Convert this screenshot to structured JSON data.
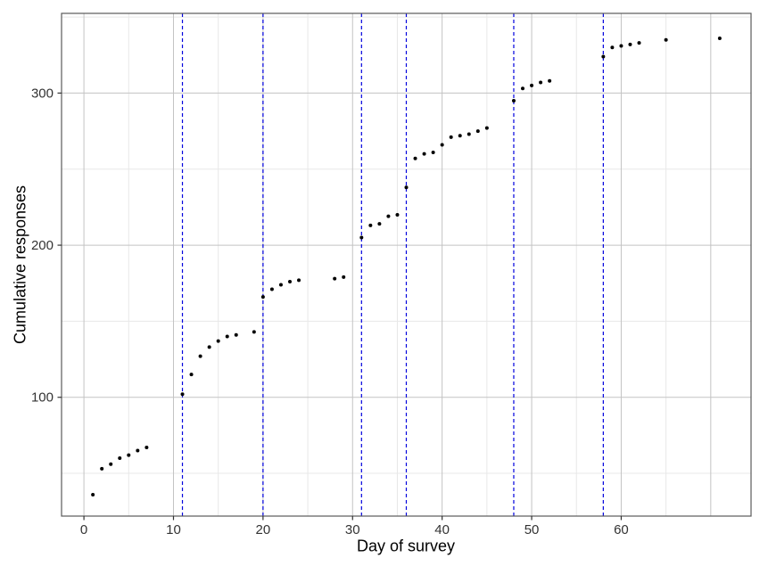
{
  "chart_data": {
    "type": "scatter",
    "title": "",
    "xlabel": "Day of survey",
    "ylabel": "Cumulative responses",
    "xlim": [
      -2.5,
      74.5
    ],
    "ylim": [
      21.9,
      352.4
    ],
    "grid": true,
    "legend_position": "none",
    "x_ticks": [
      {
        "value": 0,
        "label": "0"
      },
      {
        "value": 10,
        "label": "10"
      },
      {
        "value": 20,
        "label": "20"
      },
      {
        "value": 30,
        "label": "30"
      },
      {
        "value": 40,
        "label": "40"
      },
      {
        "value": 50,
        "label": "50"
      },
      {
        "value": 60,
        "label": "60"
      }
    ],
    "y_ticks": [
      {
        "value": 100,
        "label": "100"
      },
      {
        "value": 200,
        "label": "200"
      },
      {
        "value": 300,
        "label": "300"
      }
    ],
    "x_major_gridlines": [
      0,
      10,
      20,
      30,
      40,
      50,
      60,
      70
    ],
    "x_minor_gridlines": [
      5,
      15,
      25,
      35,
      45,
      55,
      65
    ],
    "y_major_gridlines": [
      100,
      200,
      300
    ],
    "y_minor_gridlines": [
      50,
      150,
      250,
      350
    ],
    "vlines": {
      "x": [
        11,
        20,
        31,
        36,
        48,
        58
      ],
      "style": "dashed",
      "color": "#0000dd"
    },
    "points": [
      [
        1,
        36
      ],
      [
        2,
        53
      ],
      [
        3,
        56
      ],
      [
        4,
        60
      ],
      [
        5,
        62
      ],
      [
        6,
        65
      ],
      [
        7,
        67
      ],
      [
        11,
        102
      ],
      [
        12,
        115
      ],
      [
        13,
        127
      ],
      [
        14,
        133
      ],
      [
        15,
        137
      ],
      [
        16,
        140
      ],
      [
        17,
        141
      ],
      [
        19,
        143
      ],
      [
        20,
        166
      ],
      [
        21,
        171
      ],
      [
        22,
        174
      ],
      [
        23,
        176
      ],
      [
        24,
        177
      ],
      [
        28,
        178
      ],
      [
        29,
        179
      ],
      [
        31,
        205
      ],
      [
        32,
        213
      ],
      [
        33,
        214
      ],
      [
        34,
        219
      ],
      [
        35,
        220
      ],
      [
        36,
        238
      ],
      [
        37,
        257
      ],
      [
        38,
        260
      ],
      [
        39,
        261
      ],
      [
        40,
        266
      ],
      [
        41,
        271
      ],
      [
        42,
        272
      ],
      [
        43,
        273
      ],
      [
        44,
        275
      ],
      [
        45,
        277
      ],
      [
        48,
        295
      ],
      [
        49,
        303
      ],
      [
        50,
        305
      ],
      [
        51,
        307
      ],
      [
        52,
        308
      ],
      [
        58,
        324
      ],
      [
        59,
        330
      ],
      [
        60,
        331
      ],
      [
        61,
        332
      ],
      [
        62,
        333
      ],
      [
        65,
        335
      ],
      [
        71,
        336
      ]
    ],
    "colors": {
      "point": "#000000",
      "vline": "#0000dd",
      "grid_major": "#c3c3c3",
      "grid_minor": "#e8e8e8",
      "panel_border": "#595959",
      "tick_mark": "#333333",
      "tick_text": "#333333",
      "panel_background": "#ffffff"
    }
  }
}
